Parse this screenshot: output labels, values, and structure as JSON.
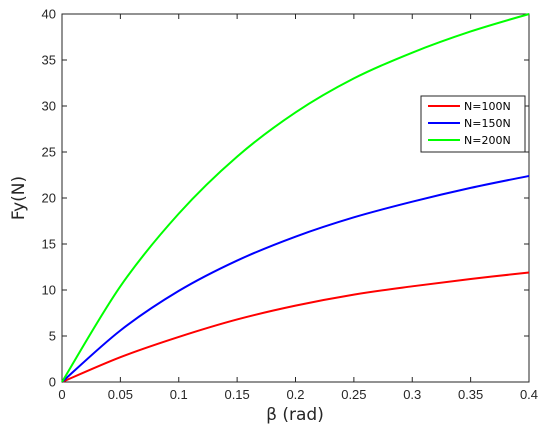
{
  "chart_data": {
    "type": "line",
    "xlabel": "β (rad)",
    "ylabel": "Fy(N)",
    "xlim": [
      0,
      0.4
    ],
    "ylim": [
      0,
      40
    ],
    "xticks": [
      0,
      0.05,
      0.1,
      0.15,
      0.2,
      0.25,
      0.3,
      0.35,
      0.4
    ],
    "xtick_labels": [
      "0",
      "0.05",
      "0.1",
      "0.15",
      "0.2",
      "0.25",
      "0.3",
      "0.35",
      "0.4"
    ],
    "yticks": [
      0,
      5,
      10,
      15,
      20,
      25,
      30,
      35,
      40
    ],
    "ytick_labels": [
      "0",
      "5",
      "10",
      "15",
      "20",
      "25",
      "30",
      "35",
      "40"
    ],
    "grid": false,
    "legend_position": "upper-right",
    "x": [
      0,
      0.05,
      0.1,
      0.15,
      0.2,
      0.25,
      0.3,
      0.35,
      0.4
    ],
    "series": [
      {
        "name": "N=100N",
        "color": "#ff0000",
        "values": [
          0,
          2.7,
          4.9,
          6.8,
          8.3,
          9.5,
          10.4,
          11.2,
          11.9
        ]
      },
      {
        "name": "N=150N",
        "color": "#0000ff",
        "values": [
          0,
          5.6,
          9.9,
          13.2,
          15.8,
          17.9,
          19.6,
          21.1,
          22.4
        ]
      },
      {
        "name": "N=200N",
        "color": "#00ff00",
        "values": [
          0,
          10.4,
          18.3,
          24.5,
          29.3,
          33.0,
          35.8,
          38.1,
          40.0
        ]
      }
    ]
  }
}
